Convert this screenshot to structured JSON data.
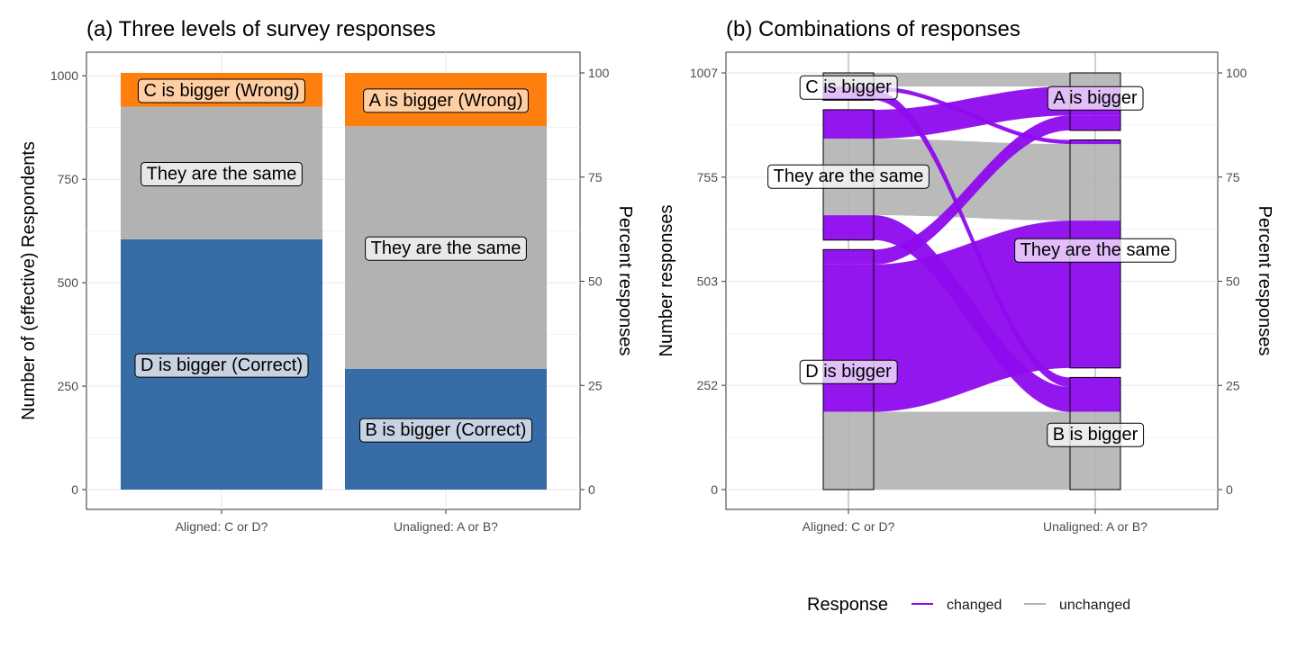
{
  "chart_data": [
    {
      "type": "bar",
      "title": "(a) Three levels of survey responses",
      "xlabel": "",
      "ylabel": "Number of (effective) Respondents",
      "ylabel_right": "Percent responses",
      "categories": [
        "Aligned: C or D?",
        "Unaligned: A or B?"
      ],
      "ylim": [
        0,
        1007
      ],
      "yticks": [
        0,
        250,
        500,
        750,
        1000
      ],
      "yticks_right": [
        0,
        25,
        50,
        75,
        100
      ],
      "grid": true,
      "colors": {
        "correct": "#386CA6",
        "same": "#B2B2B2",
        "wrong": "#FF7F0E"
      },
      "stacks": [
        {
          "category": "Aligned: C or D?",
          "segments": [
            {
              "label": "D is bigger (Correct)",
              "kind": "correct",
              "value": 605
            },
            {
              "label": "They are the same",
              "kind": "same",
              "value": 320
            },
            {
              "label": "C is bigger (Wrong)",
              "kind": "wrong",
              "value": 82
            }
          ]
        },
        {
          "category": "Unaligned: A or B?",
          "segments": [
            {
              "label": "B is bigger (Correct)",
              "kind": "correct",
              "value": 292
            },
            {
              "label": "They are the same",
              "kind": "same",
              "value": 586
            },
            {
              "label": "A is bigger (Wrong)",
              "kind": "wrong",
              "value": 129
            }
          ]
        }
      ]
    },
    {
      "type": "alluvial",
      "title": "(b) Combinations of responses",
      "ylabel": "Number responses",
      "ylabel_right": "Percent responses",
      "categories": [
        "Aligned: C or D?",
        "Unaligned: A or B?"
      ],
      "ylim": [
        0,
        1007
      ],
      "yticks": [
        0,
        252,
        503,
        755,
        1007
      ],
      "yticks_right": [
        0,
        25,
        50,
        75,
        100
      ],
      "grid": true,
      "colors": {
        "changed": "#8E0AED",
        "unchanged": "#B2B2B2"
      },
      "strata_left": [
        {
          "label": "D is bigger",
          "from": 0,
          "to": 580
        },
        {
          "label": "They are the same",
          "from": 603,
          "to": 918
        },
        {
          "label": "C is bigger",
          "from": 941,
          "to": 1007
        }
      ],
      "strata_right": [
        {
          "label": "B is bigger",
          "from": 0,
          "to": 271
        },
        {
          "label": "They are the same",
          "from": 294,
          "to": 845
        },
        {
          "label": "A is bigger",
          "from": 868,
          "to": 1007
        }
      ],
      "flows": [
        {
          "from": "D is bigger",
          "to": "B is bigger",
          "value": 188,
          "status": "unchanged"
        },
        {
          "from": "D is bigger",
          "to": "They are the same",
          "value": 356,
          "status": "changed"
        },
        {
          "from": "D is bigger",
          "to": "A is bigger",
          "value": 36,
          "status": "changed"
        },
        {
          "from": "They are the same",
          "to": "B is bigger",
          "value": 60,
          "status": "changed"
        },
        {
          "from": "They are the same",
          "to": "They are the same",
          "value": 185,
          "status": "unchanged"
        },
        {
          "from": "They are the same",
          "to": "A is bigger",
          "value": 70,
          "status": "changed"
        },
        {
          "from": "C is bigger",
          "to": "B is bigger",
          "value": 23,
          "status": "changed"
        },
        {
          "from": "C is bigger",
          "to": "They are the same",
          "value": 10,
          "status": "changed"
        },
        {
          "from": "C is bigger",
          "to": "A is bigger",
          "value": 33,
          "status": "unchanged"
        }
      ],
      "legend": {
        "title": "Response",
        "position": "bottom",
        "items": [
          {
            "label": "changed",
            "status": "changed"
          },
          {
            "label": "unchanged",
            "status": "unchanged"
          }
        ]
      }
    }
  ]
}
